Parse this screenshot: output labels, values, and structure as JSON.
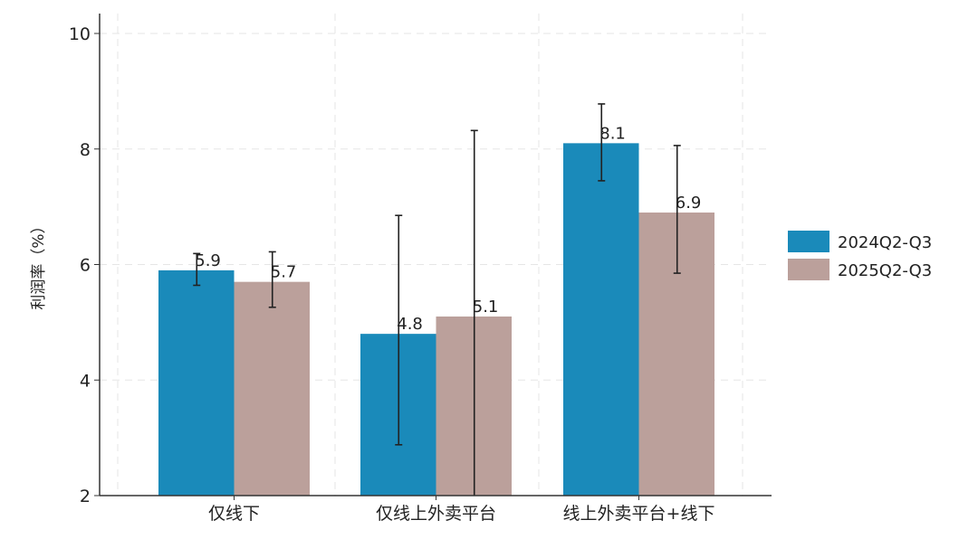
{
  "chart_data": {
    "type": "bar",
    "title": "",
    "xlabel": "",
    "ylabel": "利润率（%）",
    "ylim": [
      2,
      10.4
    ],
    "yticks": [
      2,
      4,
      6,
      8,
      10
    ],
    "grid": true,
    "legend_position": "right",
    "categories": [
      "仅线下",
      "仅线上外卖平台",
      "线上外卖平台+线下"
    ],
    "series": [
      {
        "name": "2024Q2-Q3",
        "color": "#1a8aba",
        "values": [
          5.9,
          4.8,
          8.1
        ],
        "labels": [
          "5.9",
          "4.8",
          "8.1"
        ],
        "error_low": [
          5.64,
          2.88,
          7.45
        ],
        "error_high": [
          6.19,
          6.85,
          8.78
        ]
      },
      {
        "name": "2025Q2-Q3",
        "color": "#bba09b",
        "values": [
          5.7,
          5.1,
          6.9
        ],
        "labels": [
          "5.7",
          "5.1",
          "6.9"
        ],
        "error_low": [
          5.26,
          2.0,
          5.85
        ],
        "error_high": [
          6.22,
          8.32,
          8.06
        ]
      }
    ]
  }
}
